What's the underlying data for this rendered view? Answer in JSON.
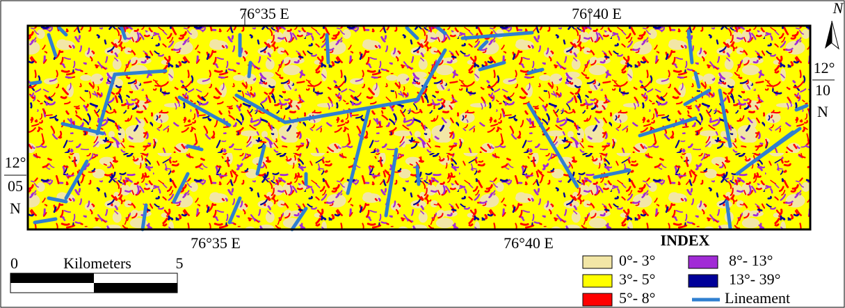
{
  "map": {
    "top_labels": [
      "76°35 E",
      "76°40 E"
    ],
    "bottom_labels": [
      "76°35 E",
      "76°40 E"
    ],
    "left_label": {
      "degrees": "12°",
      "minutes": "05",
      "hemisphere": "N"
    },
    "right_label": {
      "degrees": "12°",
      "minutes": "10",
      "hemisphere": "N"
    },
    "north": "N",
    "scale": {
      "start": "0",
      "unit": "Kilometers",
      "end": "5"
    },
    "legend": {
      "title": "INDEX",
      "items": [
        {
          "label": "0°- 3°",
          "color": "#f2e6a6"
        },
        {
          "label": "3°- 5°",
          "color": "#ffff00"
        },
        {
          "label": "5°- 8°",
          "color": "#ff0000"
        },
        {
          "label": "8°- 13°",
          "color": "#a12bd6"
        },
        {
          "label": "13°- 39°",
          "color": "#000099"
        },
        {
          "label": "Lineament",
          "color": "#2f7fd0"
        }
      ]
    }
  }
}
